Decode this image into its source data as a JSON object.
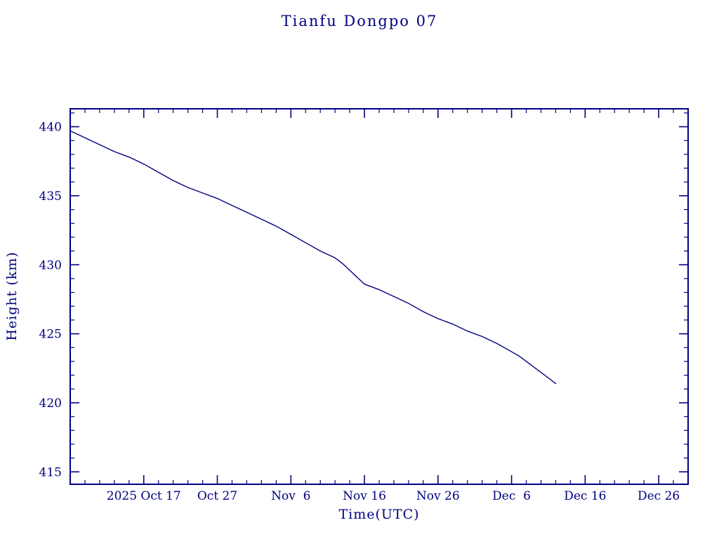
{
  "title": "Tianfu Dongpo 07",
  "colors": {
    "line": "#000080",
    "frame": "#000080",
    "background": "#ffffff"
  },
  "chart_data": {
    "type": "line",
    "title": "Tianfu Dongpo 07",
    "xlabel": "Time(UTC)",
    "ylabel": "Height (km)",
    "x_epoch_note": "day 0 = 2025 Oct 7",
    "x_range_days": [
      0,
      84
    ],
    "ylim": [
      414.1,
      441.3
    ],
    "y_ticks": [
      415,
      420,
      425,
      430,
      435,
      440
    ],
    "y_minor_step": 1,
    "x_tick_days": [
      10,
      20,
      30,
      40,
      50,
      60,
      70,
      80
    ],
    "x_tick_labels": [
      "2025 Oct 17",
      "Oct 27",
      "Nov  6",
      "Nov 16",
      "Nov 26",
      "Dec  6",
      "Dec 16",
      "Dec 26"
    ],
    "x_minor_step": 2,
    "grid": false,
    "legend": "none",
    "series": [
      {
        "name": "height",
        "x_days": [
          0,
          2,
          4,
          6,
          8,
          10,
          12,
          14,
          16,
          18,
          20,
          22,
          24,
          26,
          28,
          30,
          32,
          34,
          36,
          37,
          38,
          40,
          42,
          44,
          46,
          48,
          50,
          52,
          54,
          56,
          58,
          60,
          61,
          62,
          63,
          64,
          65,
          66
        ],
        "values": [
          439.7,
          439.2,
          438.7,
          438.2,
          437.8,
          437.3,
          436.7,
          436.1,
          435.6,
          435.2,
          434.8,
          434.3,
          433.8,
          433.3,
          432.8,
          432.2,
          431.6,
          431.0,
          430.5,
          430.1,
          429.6,
          428.6,
          428.2,
          427.7,
          427.2,
          426.6,
          426.1,
          425.7,
          425.2,
          424.8,
          424.3,
          423.7,
          423.4,
          423.0,
          422.6,
          422.2,
          421.8,
          421.4
        ]
      }
    ]
  }
}
